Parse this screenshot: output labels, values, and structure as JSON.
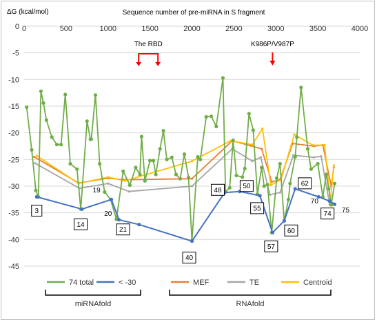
{
  "chart_data": {
    "type": "line",
    "title": "Sequence number of pre-miRNA in S fragment",
    "ylabel": "ΔG (kcal/mol)",
    "xlim": [
      0,
      4000
    ],
    "ylim": [
      -45,
      0
    ],
    "xticks": [
      0,
      500,
      1000,
      1500,
      2000,
      2500,
      3000,
      3500,
      4000
    ],
    "yticks": [
      0,
      -5,
      -10,
      -15,
      -20,
      -25,
      -30,
      -35,
      -40,
      -45
    ],
    "grid": "horizontal",
    "colors": {
      "total": "#70ad47",
      "lt30": "#4472c4",
      "mef": "#ed7d31",
      "te": "#a5a5a5",
      "centroid": "#ffc000",
      "arrow": "#ff0000"
    },
    "series": [
      {
        "name": "74 total",
        "points": [
          [
            30,
            -15.2
          ],
          [
            90,
            -23.2
          ],
          [
            140,
            -30.8
          ],
          [
            170,
            -32
          ],
          [
            200,
            -12.2
          ],
          [
            230,
            -14.4
          ],
          [
            265,
            -17.6
          ],
          [
            330,
            -20.8
          ],
          [
            390,
            -22.2
          ],
          [
            440,
            -22.2
          ],
          [
            490,
            -12.8
          ],
          [
            550,
            -25.8
          ],
          [
            630,
            -26.8
          ],
          [
            675,
            -34.3
          ],
          [
            750,
            -17.8
          ],
          [
            790,
            -21.2
          ],
          [
            800,
            -21.2
          ],
          [
            850,
            -12.9
          ],
          [
            900,
            -25.8
          ],
          [
            960,
            -31.1
          ],
          [
            1030,
            -32.5
          ],
          [
            1100,
            -36.2
          ],
          [
            1180,
            -27.2
          ],
          [
            1260,
            -29.8
          ],
          [
            1330,
            -26.5
          ],
          [
            1380,
            -27.8
          ],
          [
            1400,
            -20.7
          ],
          [
            1440,
            -29
          ],
          [
            1500,
            -25.2
          ],
          [
            1540,
            -25.2
          ],
          [
            1570,
            -27.8
          ],
          [
            1620,
            -23
          ],
          [
            1660,
            -19.6
          ],
          [
            1700,
            -25
          ],
          [
            1760,
            -24.6
          ],
          [
            1810,
            -27.8
          ],
          [
            1860,
            -28.6
          ],
          [
            1910,
            -24
          ],
          [
            1960,
            -28.4
          ],
          [
            2000,
            -40.2
          ],
          [
            2070,
            -24.5
          ],
          [
            2100,
            -25
          ],
          [
            2170,
            -17
          ],
          [
            2230,
            -16.9
          ],
          [
            2290,
            -18.8
          ],
          [
            2370,
            -9.7
          ],
          [
            2400,
            -31
          ],
          [
            2450,
            -30.3
          ],
          [
            2490,
            -21.4
          ],
          [
            2530,
            -28
          ],
          [
            2600,
            -28.3
          ],
          [
            2630,
            -26.7
          ],
          [
            2680,
            -16.4
          ],
          [
            2730,
            -19.5
          ],
          [
            2780,
            -31.5
          ],
          [
            2830,
            -26.5
          ],
          [
            2860,
            -30
          ],
          [
            2900,
            -29.7
          ],
          [
            2950,
            -38.7
          ],
          [
            3010,
            -28.5
          ],
          [
            3050,
            -25.8
          ],
          [
            3100,
            -36.5
          ],
          [
            3150,
            -32.5
          ],
          [
            3170,
            -29.5
          ],
          [
            3230,
            -24.5
          ],
          [
            3250,
            -20.8
          ],
          [
            3300,
            -11.5
          ],
          [
            3380,
            -23
          ],
          [
            3420,
            -26.8
          ],
          [
            3500,
            -25.8
          ],
          [
            3560,
            -32
          ],
          [
            3600,
            -27.8
          ],
          [
            3630,
            -30.5
          ],
          [
            3660,
            -33.5
          ],
          [
            3700,
            -29.5
          ]
        ]
      },
      {
        "name": "< -30",
        "points": [
          [
            150,
            -32
          ],
          [
            690,
            -34.3
          ],
          [
            1040,
            -32.5
          ],
          [
            1130,
            -36.3
          ],
          [
            1370,
            -37.2
          ],
          [
            2000,
            -40.3
          ],
          [
            2390,
            -31.2
          ],
          [
            2570,
            -31
          ],
          [
            2810,
            -31.8
          ],
          [
            2960,
            -38.7
          ],
          [
            3100,
            -36.5
          ],
          [
            3230,
            -30.5
          ],
          [
            3510,
            -32
          ],
          [
            3640,
            -32.8
          ],
          [
            3700,
            -33.4
          ]
        ]
      },
      {
        "name": "MEF",
        "points": [
          [
            120,
            -24.5
          ],
          [
            650,
            -29.4
          ],
          [
            1000,
            -28.5
          ],
          [
            1200,
            -28.8
          ],
          [
            2000,
            -28.6
          ],
          [
            2480,
            -21.5
          ],
          [
            2700,
            -22.4
          ],
          [
            2830,
            -23
          ],
          [
            2950,
            -29.2
          ],
          [
            3050,
            -28.8
          ],
          [
            3200,
            -22
          ],
          [
            3450,
            -22.5
          ],
          [
            3560,
            -22.3
          ],
          [
            3660,
            -30
          ],
          [
            3690,
            -26.5
          ]
        ]
      },
      {
        "name": "TE",
        "points": [
          [
            130,
            -25.7
          ],
          [
            660,
            -30.4
          ],
          [
            1000,
            -29.5
          ],
          [
            1250,
            -31
          ],
          [
            2000,
            -30
          ],
          [
            2480,
            -23
          ],
          [
            2720,
            -25.3
          ],
          [
            2820,
            -24.6
          ],
          [
            2930,
            -31.6
          ],
          [
            3050,
            -31.2
          ],
          [
            3210,
            -24.2
          ],
          [
            3450,
            -24.6
          ],
          [
            3540,
            -24.4
          ],
          [
            3640,
            -33.4
          ],
          [
            3680,
            -33.2
          ]
        ]
      },
      {
        "name": "Centroid",
        "points": [
          [
            150,
            -24.3
          ],
          [
            650,
            -29.5
          ],
          [
            1000,
            -28.3
          ],
          [
            1200,
            -29
          ],
          [
            2000,
            -25.3
          ],
          [
            2460,
            -21.5
          ],
          [
            2720,
            -22.2
          ],
          [
            2840,
            -19.2
          ],
          [
            2940,
            -29.8
          ],
          [
            3060,
            -28.8
          ],
          [
            3220,
            -20.3
          ],
          [
            3440,
            -22.3
          ],
          [
            3580,
            -22.3
          ],
          [
            3650,
            -32.8
          ],
          [
            3690,
            -26.1
          ]
        ]
      }
    ],
    "point_labels": [
      {
        "text": "3",
        "x": 150,
        "y": -32,
        "boxed": true
      },
      {
        "text": "14",
        "x": 690,
        "y": -34.3,
        "boxed": true
      },
      {
        "text": "19",
        "x": 880,
        "y": -31.2,
        "boxed": false
      },
      {
        "text": "20",
        "x": 1000,
        "y": -34.6,
        "boxed": false
      },
      {
        "text": "21",
        "x": 1130,
        "y": -36.3,
        "boxed": true
      },
      {
        "text": "40",
        "x": 2000,
        "y": -40.3,
        "boxed": true
      },
      {
        "text": "48",
        "x": 2390,
        "y": -31.2,
        "boxed": true
      },
      {
        "text": "50",
        "x": 2570,
        "y": -31,
        "boxed": true
      },
      {
        "text": "55",
        "x": 2810,
        "y": -31.8,
        "boxed": true
      },
      {
        "text": "57",
        "x": 2960,
        "y": -38.7,
        "boxed": true
      },
      {
        "text": "60",
        "x": 3100,
        "y": -36.5,
        "boxed": true
      },
      {
        "text": "62",
        "x": 3230,
        "y": -30.5,
        "boxed": true
      },
      {
        "text": "70",
        "x": 3510,
        "y": -32,
        "boxed": false
      },
      {
        "text": "74",
        "x": 3640,
        "y": -32.8,
        "boxed": true
      },
      {
        "text": "75",
        "x": 3700,
        "y": -33.4,
        "boxed": false
      }
    ],
    "annotations": [
      {
        "text": "The RBD",
        "x": 1480
      },
      {
        "text": "K986P/V987P",
        "x": 2960
      }
    ],
    "legend": {
      "placement": "bottom",
      "groups": [
        {
          "label": "miRNAfold",
          "items": [
            "74 total",
            "< -30"
          ]
        },
        {
          "label": "RNAfold",
          "items": [
            "MEF",
            "TE",
            "Centroid"
          ]
        }
      ]
    }
  }
}
